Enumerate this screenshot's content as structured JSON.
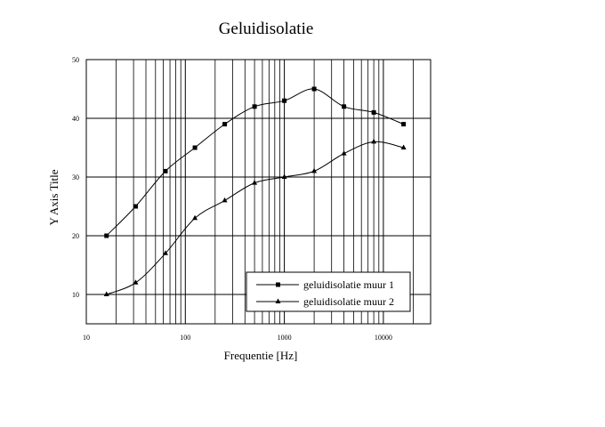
{
  "chart_data": {
    "type": "line",
    "title": "Geluidisolatie",
    "xlabel": "Frequentie [Hz]",
    "ylabel": "Y Axis Title",
    "xscale": "log",
    "xlim": [
      10,
      30000
    ],
    "ylim": [
      5,
      50
    ],
    "x_ticks": [
      10,
      100,
      1000,
      10000
    ],
    "y_ticks": [
      10,
      20,
      30,
      40,
      50
    ],
    "grid": true,
    "legend_position": "bottom-right",
    "x": [
      16,
      31.5,
      63,
      125,
      250,
      500,
      1000,
      2000,
      4000,
      8000,
      16000
    ],
    "series": [
      {
        "name": "geluidisolatie muur 1",
        "marker": "square",
        "values": [
          20,
          25,
          31,
          35,
          39,
          42,
          43,
          45,
          42,
          41,
          39
        ]
      },
      {
        "name": "geluidisolatie muur 2",
        "marker": "triangle",
        "values": [
          10,
          12,
          17,
          23,
          26,
          29,
          30,
          31,
          34,
          36,
          35
        ]
      }
    ]
  }
}
